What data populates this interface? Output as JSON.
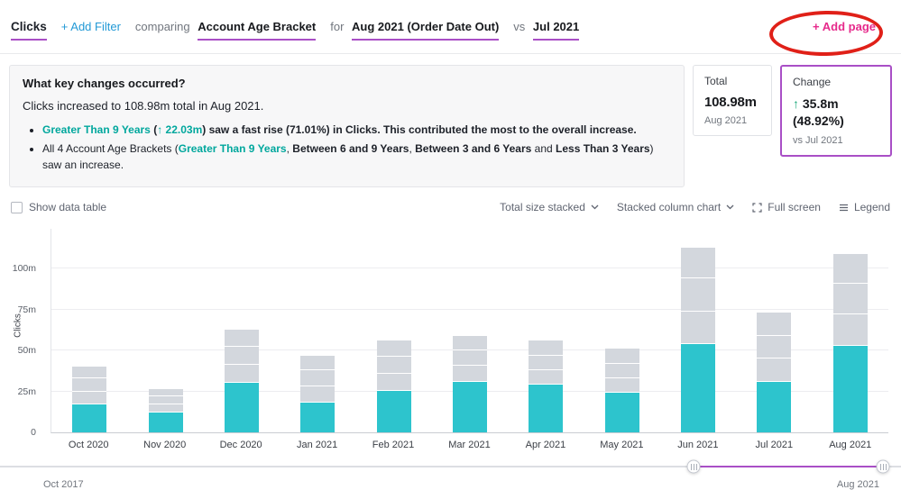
{
  "header": {
    "metric": "Clicks",
    "add_filter": "+ Add Filter",
    "comparing_label": "comparing",
    "comparing_value": "Account Age Bracket",
    "for_label": "for",
    "for_value": "Aug 2021 (Order Date Out)",
    "vs_label": "vs",
    "vs_value": "Jul 2021",
    "add_page": "+ Add page"
  },
  "summary": {
    "title": "What key changes occurred?",
    "line1": "Clicks increased to 108.98m total in Aug 2021.",
    "bullets": [
      {
        "segments": [
          {
            "style": "teal-bold",
            "text": "Greater Than 9 Years"
          },
          {
            "style": "bold",
            "text": " ("
          },
          {
            "style": "teal-bold",
            "text": "↑ 22.03m"
          },
          {
            "style": "bold",
            "text": ") saw a fast rise (71.01%) in Clicks. This contributed the most to the overall increase."
          }
        ]
      },
      {
        "segments": [
          {
            "style": "plain",
            "text": "All 4 Account Age Brackets ("
          },
          {
            "style": "teal-bold",
            "text": "Greater Than 9 Years"
          },
          {
            "style": "plain",
            "text": ", "
          },
          {
            "style": "bold",
            "text": "Between 6 and 9 Years"
          },
          {
            "style": "plain",
            "text": ", "
          },
          {
            "style": "bold",
            "text": "Between 3 and 6 Years"
          },
          {
            "style": "plain",
            "text": " and "
          },
          {
            "style": "bold",
            "text": "Less Than 3 Years"
          },
          {
            "style": "plain",
            "text": ") saw an increase."
          }
        ]
      }
    ]
  },
  "cards": {
    "total": {
      "label": "Total",
      "value": "108.98m",
      "period": "Aug 2021"
    },
    "change": {
      "label": "Change",
      "arrow": "↑",
      "value": "35.8m",
      "pct": "(48.92%)",
      "vs": "vs Jul 2021"
    }
  },
  "toolbar": {
    "show_data_table": "Show data table",
    "size_mode": "Total size stacked",
    "chart_type": "Stacked column chart",
    "full_screen": "Full screen",
    "legend": "Legend"
  },
  "chart_data": {
    "type": "bar",
    "stacked": true,
    "ylabel": "Clicks",
    "unit": "m",
    "ylim": [
      0,
      125
    ],
    "yticks": [
      0,
      25,
      50,
      75,
      100
    ],
    "ytick_labels": [
      "0",
      "25m",
      "50m",
      "75m",
      "100m"
    ],
    "categories": [
      "Oct 2020",
      "Nov 2020",
      "Dec 2020",
      "Jan 2021",
      "Feb 2021",
      "Mar 2021",
      "Apr 2021",
      "May 2021",
      "Jun 2021",
      "Jul 2021",
      "Aug 2021"
    ],
    "series": [
      {
        "name": "Greater Than 9 Years",
        "color": "#2dc4cd",
        "values": [
          17,
          12,
          30.5,
          18,
          25.5,
          31,
          29,
          24,
          54,
          31,
          53
        ]
      },
      {
        "name": "Between 6 and 9 Years",
        "color": "#d3d7dd",
        "values": [
          8,
          5,
          11,
          10,
          10.5,
          9.5,
          9,
          9,
          20,
          14,
          19
        ]
      },
      {
        "name": "Between 3 and 6 Years",
        "color": "#d3d7dd",
        "values": [
          8,
          5,
          11,
          10,
          10,
          9.5,
          9,
          9,
          20,
          14,
          19
        ]
      },
      {
        "name": "Less Than 3 Years",
        "color": "#d3d7dd",
        "values": [
          7,
          4.7,
          10.5,
          9,
          10,
          9,
          9,
          9,
          19,
          14.2,
          18
        ]
      }
    ],
    "totals_note": "Aug 2021 total 108.98m; Jul 2021 total ~73.18m",
    "x_range": {
      "start": "Oct 2017",
      "end": "Aug 2021",
      "selection_start_pct": 77,
      "selection_end_pct": 98
    },
    "grid": true,
    "legend_visible": false
  },
  "colors": {
    "accent_teal_bar": "#2dc4cd",
    "teal_text": "#00a79d",
    "purple_accent": "#a94fc6",
    "pink_add_page": "#e62a8b",
    "green_positive": "#1fa97c",
    "bar_gray": "#d3d7dd",
    "annotation_red": "#e02018"
  }
}
